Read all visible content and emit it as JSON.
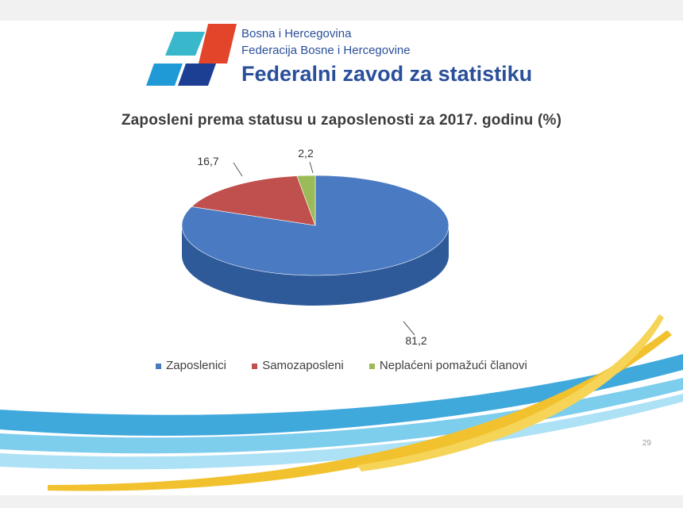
{
  "header": {
    "line1": "Bosna i Hercegovina",
    "line2": "Federacija Bosne i Hercegovine",
    "line3": "Federalni zavod za statistiku"
  },
  "slide_number": "29",
  "chart_data": {
    "type": "pie",
    "title": "Zaposleni  prema statusu u zaposlenosti za 2017. godinu (%)",
    "categories": [
      "Zaposlenici",
      "Samozaposleni",
      "Neplaćeni pomažući članovi"
    ],
    "values": [
      81.2,
      16.7,
      2.2
    ],
    "data_labels": [
      "81,2",
      "16,7",
      "2,2"
    ],
    "colors": [
      "#4a7ac2",
      "#c0504d",
      "#9bbb59"
    ],
    "side_colors": [
      "#2f5a9a",
      "#8c3533",
      "#6e8a3c"
    ],
    "legend_position": "bottom",
    "three_d": true
  },
  "colors": {
    "brand_blue": "#2a4f9a",
    "logo_teal": "#39b8cc",
    "logo_red": "#e2452a",
    "logo_blue": "#1f9ad6",
    "logo_navy": "#1c3f94",
    "swoosh_blue": "#1e9ad6",
    "swoosh_gold": "#f2c12e"
  }
}
